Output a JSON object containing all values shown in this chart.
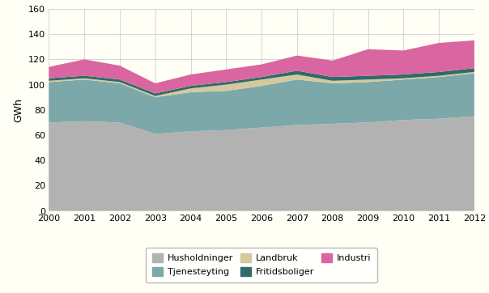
{
  "years": [
    2000,
    2001,
    2002,
    2003,
    2004,
    2005,
    2006,
    2007,
    2008,
    2009,
    2010,
    2011,
    2012
  ],
  "Husholdninger": [
    70,
    71,
    70,
    61,
    63,
    64,
    66,
    68,
    69,
    70,
    72,
    73,
    75
  ],
  "Tjenesteyting": [
    32,
    33,
    31,
    29,
    31,
    31,
    33,
    36,
    32,
    32,
    32,
    33,
    34
  ],
  "Landbruk": [
    1,
    1,
    1,
    1,
    3,
    5,
    5,
    4,
    2,
    2,
    1,
    1,
    1
  ],
  "Fritidsboliger": [
    2,
    2,
    2,
    2,
    2,
    2,
    2,
    3,
    3,
    3,
    3,
    3,
    3
  ],
  "Industri": [
    9,
    13,
    11,
    8,
    9,
    10,
    10,
    12,
    13,
    21,
    19,
    23,
    22
  ],
  "colors": {
    "Husholdninger": "#b2b2b2",
    "Tjenesteyting": "#7da8aa",
    "Landbruk": "#d4c99a",
    "Fritidsboliger": "#2e6b6b",
    "Industri": "#d966a0"
  },
  "ylim": [
    0,
    160
  ],
  "yticks": [
    0,
    20,
    40,
    60,
    80,
    100,
    120,
    140,
    160
  ],
  "ylabel": "GWh",
  "background_color": "#fffff5",
  "grid_color": "#d0d0d0",
  "legend_order_row1": [
    "Husholdninger",
    "Tjenesteyting",
    "Landbruk"
  ],
  "legend_order_row2": [
    "Fritidsboliger",
    "Industri"
  ]
}
